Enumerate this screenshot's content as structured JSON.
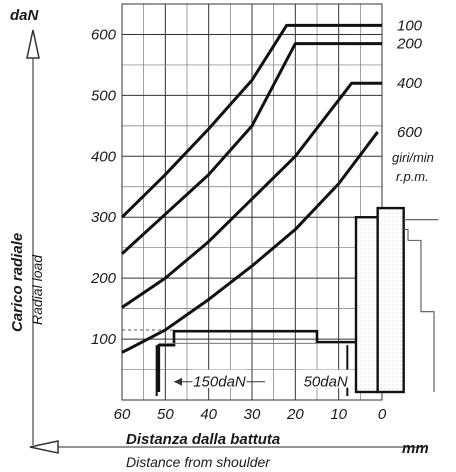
{
  "chart_data": {
    "type": "line",
    "x_direction": "reversed",
    "xlim": [
      60,
      0
    ],
    "ylim": [
      0,
      650
    ],
    "x_ticks": [
      60,
      50,
      40,
      30,
      20,
      10,
      0
    ],
    "y_ticks": [
      100,
      200,
      300,
      400,
      500,
      600
    ],
    "grid": true,
    "y_unit": "daN",
    "ylabel": "Carico radiale",
    "ylabel_en": "Radial load",
    "x_unit": "mm",
    "xlabel": "Distanza dalla battuta",
    "xlabel_en": "Distance from shoulder",
    "series_label": "giri/min",
    "series_label_en": "r.p.m.",
    "series": [
      {
        "name": "100",
        "x": [
          60,
          50,
          40,
          30,
          22,
          0
        ],
        "y": [
          300,
          370,
          445,
          525,
          615,
          615
        ]
      },
      {
        "name": "200",
        "x": [
          60,
          50,
          40,
          30,
          20,
          0
        ],
        "y": [
          240,
          305,
          370,
          450,
          585,
          585
        ]
      },
      {
        "name": "400",
        "x": [
          60,
          50,
          40,
          30,
          20,
          7,
          0
        ],
        "y": [
          152,
          200,
          260,
          330,
          400,
          520,
          520
        ]
      },
      {
        "name": "600",
        "x": [
          60,
          50,
          40,
          30,
          20,
          10,
          1
        ],
        "y": [
          78,
          115,
          165,
          220,
          280,
          355,
          440
        ]
      }
    ],
    "annotations": [
      {
        "text": "150daN",
        "x_range": [
          48,
          27
        ]
      },
      {
        "text": "50daN",
        "x_range": [
          19,
          7
        ]
      }
    ]
  }
}
